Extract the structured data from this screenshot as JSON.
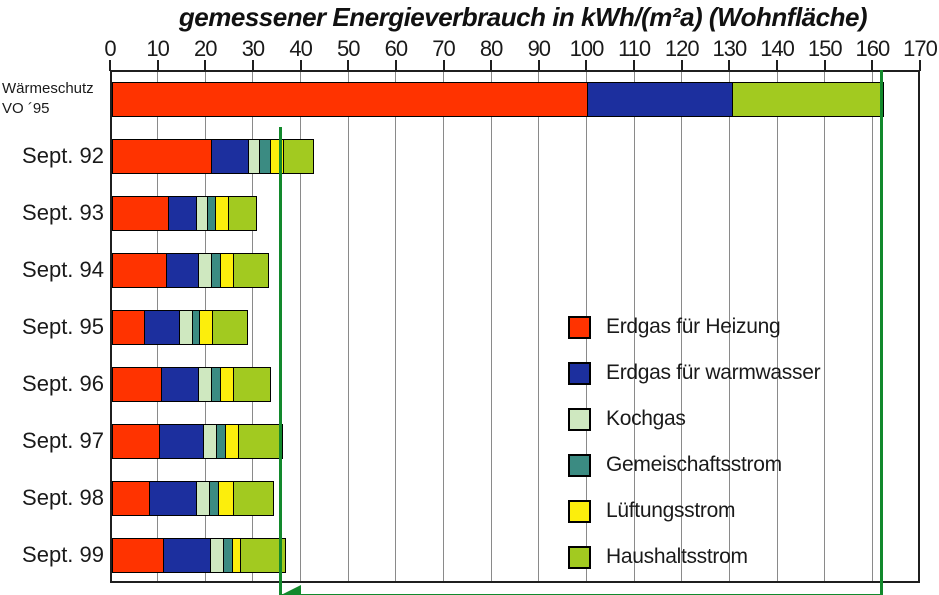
{
  "title": "gemessener Energieverbrauch in kWh/(m²a) (Wohnfläche)",
  "colors": {
    "heizung": "#ff3300",
    "warmwasser": "#1c2f9e",
    "kochgas": "#cfe8c0",
    "gemeinschaftsstrom": "#3b8b82",
    "lueftungsstrom": "#fcee0c",
    "haushaltsstrom": "#a2ca20",
    "reference_green": "#12892c",
    "grid": "#8a8a8a",
    "axis": "#1f1f1f"
  },
  "chart_data": {
    "type": "bar",
    "orientation": "horizontal",
    "stacked": true,
    "grid": "vertical",
    "xlim": [
      0,
      170
    ],
    "x_ticks": [
      0,
      10,
      20,
      30,
      40,
      50,
      60,
      70,
      80,
      90,
      100,
      110,
      120,
      130,
      140,
      150,
      160,
      170
    ],
    "categories": [
      {
        "label": "Wärmeschutz\nVO ´95",
        "small": true
      },
      {
        "label": "Sept. 92"
      },
      {
        "label": "Sept. 93"
      },
      {
        "label": "Sept. 94"
      },
      {
        "label": "Sept. 95"
      },
      {
        "label": "Sept. 96"
      },
      {
        "label": "Sept. 97"
      },
      {
        "label": "Sept. 98"
      },
      {
        "label": "Sept. 99"
      }
    ],
    "series": [
      {
        "name": "Erdgas für Heizung",
        "color_key": "heizung",
        "values": [
          100,
          21,
          12,
          11.5,
          7,
          10.5,
          10,
          8,
          11
        ]
      },
      {
        "name": "Erdgas für warmwasser",
        "color_key": "warmwasser",
        "values": [
          30.5,
          8,
          6,
          7,
          7.5,
          8,
          9.5,
          10,
          10
        ]
      },
      {
        "name": "Kochgas",
        "color_key": "kochgas",
        "values": [
          0,
          2.5,
          2.5,
          3,
          3,
          3,
          3,
          3,
          3
        ]
      },
      {
        "name": "Gemeischaftsstrom",
        "color_key": "gemeinschaftsstrom",
        "values": [
          0,
          2.5,
          2,
          2,
          1.5,
          2,
          2,
          2,
          2
        ]
      },
      {
        "name": "Lüftungsstrom",
        "color_key": "lueftungsstrom",
        "values": [
          0,
          3,
          3,
          3,
          3,
          3,
          3,
          3.5,
          2
        ]
      },
      {
        "name": "Haushaltsstrom",
        "color_key": "haushaltsstrom",
        "values": [
          32,
          6.5,
          6,
          7.5,
          7.5,
          8,
          9.5,
          8.5,
          9.5
        ]
      }
    ],
    "totals": [
      162.5,
      43.5,
      31.5,
      34,
      29.5,
      34.5,
      37,
      35,
      37.5
    ],
    "reference_lines": [
      {
        "name": "target-line",
        "value": 35.7,
        "from_top_of_row": 1
      },
      {
        "name": "waermeschutz-total-line",
        "value": 162,
        "from_top_of_row": 0
      }
    ],
    "arrow": {
      "from_value": 162,
      "to_value": 35.7,
      "direction": "left",
      "position": "bottom"
    },
    "legend_position": "inside-middle"
  }
}
